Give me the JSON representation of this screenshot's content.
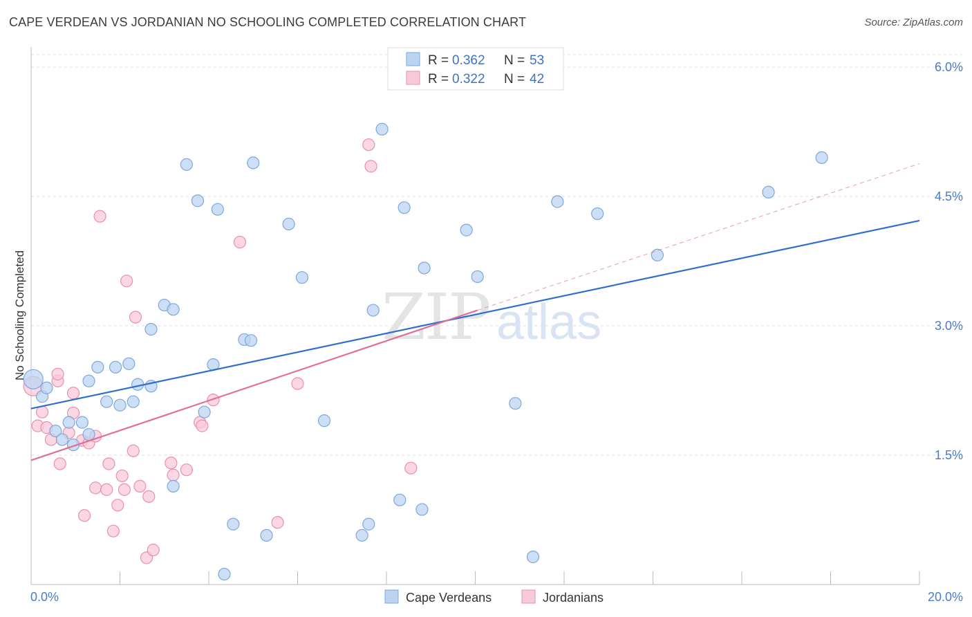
{
  "header": {
    "title": "CAPE VERDEAN VS JORDANIAN NO SCHOOLING COMPLETED CORRELATION CHART",
    "source": "Source: ZipAtlas.com"
  },
  "watermark": {
    "zip": "ZIP",
    "atlas": "atlas"
  },
  "legend": {
    "items": [
      {
        "r_label": "R = ",
        "r_value": "0.362",
        "n_label": "N = ",
        "n_value": "53",
        "color": "#a9c8f0"
      },
      {
        "r_label": "R = ",
        "r_value": "0.322",
        "n_label": "N = ",
        "n_value": "42",
        "color": "#f6bcd0"
      }
    ]
  },
  "bottom_legend": [
    "Cape Verdeans",
    "Jordanians"
  ],
  "colors": {
    "blue_fill": "#bcd4f2",
    "blue_stroke": "#7ea7db",
    "blue_line": "#2f6fcc",
    "pink_fill": "#f8cad8",
    "pink_stroke": "#e990ad",
    "pink_line": "#e06f97",
    "grid": "#dddddd",
    "tick_text": "#4a7cc9"
  },
  "chart_data": {
    "type": "scatter",
    "title": "CAPE VERDEAN VS JORDANIAN NO SCHOOLING COMPLETED CORRELATION CHART",
    "xlabel": "",
    "ylabel": "No Schooling Completed",
    "xlim": [
      0,
      20
    ],
    "ylim": [
      0,
      6.3
    ],
    "x_tick_labels": [
      "0.0%",
      "20.0%"
    ],
    "y_ticks": [
      1.5,
      3.0,
      4.5,
      6.0
    ],
    "y_tick_labels": [
      "1.5%",
      "3.0%",
      "4.5%",
      "6.0%"
    ],
    "grid": true,
    "legend_position": "top-center",
    "series": [
      {
        "name": "Cape Verdeans",
        "r": 0.362,
        "n": 53,
        "trend": {
          "x": [
            0,
            20
          ],
          "y": [
            2.04,
            4.22
          ]
        },
        "points": [
          [
            0.05,
            2.38
          ],
          [
            0.25,
            2.18
          ],
          [
            0.35,
            2.28
          ],
          [
            0.55,
            1.78
          ],
          [
            0.7,
            1.68
          ],
          [
            0.85,
            1.88
          ],
          [
            0.95,
            1.62
          ],
          [
            1.15,
            1.88
          ],
          [
            1.3,
            1.74
          ],
          [
            1.3,
            2.36
          ],
          [
            1.5,
            2.52
          ],
          [
            1.7,
            2.12
          ],
          [
            1.9,
            2.52
          ],
          [
            2.0,
            2.08
          ],
          [
            2.2,
            2.56
          ],
          [
            2.3,
            2.12
          ],
          [
            2.4,
            2.32
          ],
          [
            2.7,
            2.96
          ],
          [
            2.7,
            2.3
          ],
          [
            3.0,
            3.24
          ],
          [
            3.2,
            3.19
          ],
          [
            3.2,
            1.14
          ],
          [
            3.5,
            4.87
          ],
          [
            3.75,
            4.45
          ],
          [
            3.9,
            2.0
          ],
          [
            4.1,
            2.55
          ],
          [
            4.2,
            4.35
          ],
          [
            4.35,
            0.12
          ],
          [
            4.55,
            0.7
          ],
          [
            4.8,
            2.84
          ],
          [
            4.95,
            2.83
          ],
          [
            5.0,
            4.89
          ],
          [
            5.3,
            0.57
          ],
          [
            5.8,
            4.18
          ],
          [
            6.1,
            3.56
          ],
          [
            6.6,
            1.9
          ],
          [
            7.45,
            0.57
          ],
          [
            7.6,
            0.7
          ],
          [
            7.7,
            3.18
          ],
          [
            7.9,
            5.28
          ],
          [
            8.3,
            0.98
          ],
          [
            8.4,
            4.37
          ],
          [
            8.8,
            0.87
          ],
          [
            8.85,
            3.67
          ],
          [
            9.8,
            4.11
          ],
          [
            10.05,
            3.57
          ],
          [
            10.9,
            2.1
          ],
          [
            11.3,
            0.32
          ],
          [
            11.85,
            4.44
          ],
          [
            12.75,
            4.3
          ],
          [
            14.1,
            3.82
          ],
          [
            16.6,
            4.55
          ],
          [
            17.8,
            4.95
          ]
        ]
      },
      {
        "name": "Jordanians",
        "r": 0.322,
        "n": 42,
        "trend": {
          "x": [
            0,
            10.05
          ],
          "y": [
            1.44,
            3.18
          ]
        },
        "trend_extension": {
          "x": [
            10.05,
            20
          ],
          "y": [
            3.18,
            4.88
          ]
        },
        "points": [
          [
            0.05,
            2.3
          ],
          [
            0.15,
            1.84
          ],
          [
            0.25,
            2.0
          ],
          [
            0.35,
            1.82
          ],
          [
            0.45,
            1.68
          ],
          [
            0.6,
            2.36
          ],
          [
            0.6,
            2.44
          ],
          [
            0.65,
            1.4
          ],
          [
            0.85,
            1.76
          ],
          [
            0.95,
            2.22
          ],
          [
            0.95,
            1.99
          ],
          [
            1.15,
            1.67
          ],
          [
            1.2,
            0.8
          ],
          [
            1.3,
            1.64
          ],
          [
            1.45,
            1.72
          ],
          [
            1.45,
            1.12
          ],
          [
            1.55,
            4.27
          ],
          [
            1.7,
            1.1
          ],
          [
            1.75,
            1.4
          ],
          [
            1.85,
            0.62
          ],
          [
            1.95,
            0.92
          ],
          [
            2.05,
            1.26
          ],
          [
            2.1,
            1.1
          ],
          [
            2.15,
            3.52
          ],
          [
            2.3,
            1.55
          ],
          [
            2.35,
            3.1
          ],
          [
            2.45,
            1.14
          ],
          [
            2.6,
            0.31
          ],
          [
            2.65,
            1.02
          ],
          [
            2.75,
            0.4
          ],
          [
            3.15,
            1.41
          ],
          [
            3.2,
            1.27
          ],
          [
            3.5,
            1.33
          ],
          [
            3.8,
            1.88
          ],
          [
            3.85,
            1.84
          ],
          [
            4.1,
            2.14
          ],
          [
            4.7,
            3.97
          ],
          [
            5.55,
            0.72
          ],
          [
            6.0,
            2.33
          ],
          [
            7.6,
            5.1
          ],
          [
            7.65,
            4.85
          ],
          [
            8.55,
            1.35
          ]
        ]
      }
    ]
  }
}
